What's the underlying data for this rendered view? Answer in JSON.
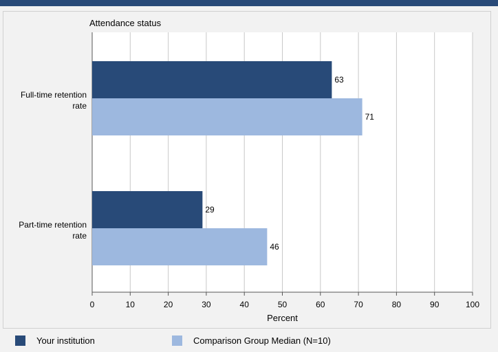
{
  "chart_data": {
    "type": "bar",
    "orientation": "horizontal",
    "title": "Attendance status",
    "categories": [
      "Full-time retention rate",
      "Part-time retention rate"
    ],
    "category_label_lines": [
      [
        "Full-time retention",
        "rate"
      ],
      [
        "Part-time retention",
        "rate"
      ]
    ],
    "series": [
      {
        "name": "Your institution",
        "values": [
          63,
          29
        ],
        "color": "#284a78"
      },
      {
        "name": "Comparison Group Median (N=10)",
        "values": [
          71,
          46
        ],
        "color": "#9db8df"
      }
    ],
    "xlabel": "Percent",
    "xlim": [
      0,
      100
    ],
    "xticks": [
      0,
      10,
      20,
      30,
      40,
      50,
      60,
      70,
      80,
      90,
      100
    ],
    "grid": true,
    "legend_position": "bottom"
  }
}
